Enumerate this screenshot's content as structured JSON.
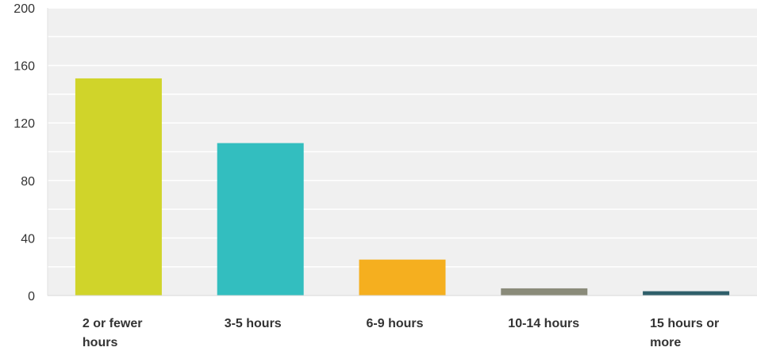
{
  "chart_data": {
    "type": "bar",
    "categories": [
      "2 or fewer hours",
      "3-5 hours",
      "6-9 hours",
      "10-14 hours",
      "15 hours or more"
    ],
    "category_lines": [
      [
        "2 or fewer",
        "hours"
      ],
      [
        "3-5 hours"
      ],
      [
        "6-9 hours"
      ],
      [
        "10-14 hours"
      ],
      [
        "15 hours or",
        "more"
      ]
    ],
    "values": [
      151,
      106,
      25,
      5,
      3
    ],
    "colors": [
      "#D0D42A",
      "#33BEBF",
      "#F5AF1F",
      "#8A8B7A",
      "#2F5F6A"
    ],
    "ylim": [
      0,
      200
    ],
    "yticks": [
      0,
      40,
      80,
      120,
      160,
      200
    ],
    "grid": true,
    "plot_background": "#F0F0F0",
    "grid_color": "#FFFFFF"
  }
}
